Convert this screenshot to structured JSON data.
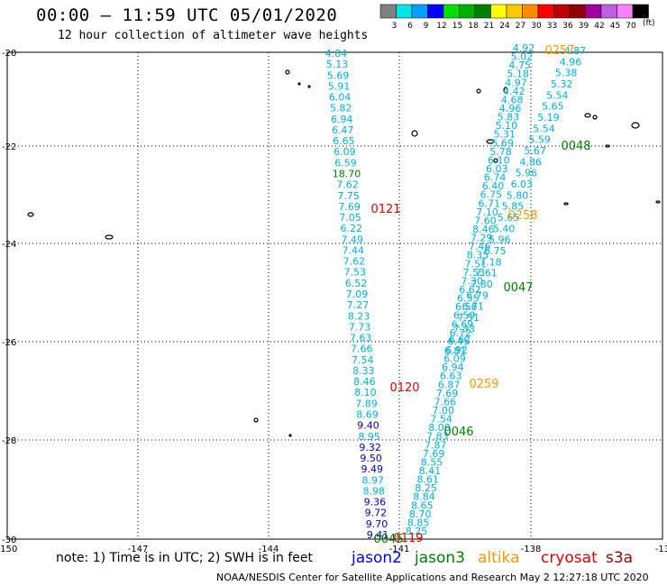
{
  "header": {
    "title": "00:00 – 11:59 UTC 05/01/2020",
    "subtitle": "12 hour collection of altimeter wave heights"
  },
  "colorbar": {
    "unit": "(ft)",
    "bins": [
      {
        "label": "3",
        "color": "#808080"
      },
      {
        "label": "6",
        "color": "#00e5e5"
      },
      {
        "label": "9",
        "color": "#00a0ff"
      },
      {
        "label": "12",
        "color": "#0000ff"
      },
      {
        "label": "15",
        "color": "#00e000"
      },
      {
        "label": "18",
        "color": "#00b000"
      },
      {
        "label": "21",
        "color": "#008000"
      },
      {
        "label": "24",
        "color": "#ffff00"
      },
      {
        "label": "27",
        "color": "#ffc800"
      },
      {
        "label": "30",
        "color": "#ff8c00"
      },
      {
        "label": "33",
        "color": "#ff0000"
      },
      {
        "label": "36",
        "color": "#c00000"
      },
      {
        "label": "39",
        "color": "#900000"
      },
      {
        "label": "42",
        "color": "#a000a0"
      },
      {
        "label": "45",
        "color": "#c060e0"
      },
      {
        "label": "70",
        "color": "#ff80ff"
      },
      {
        "label": "",
        "color": "#000000"
      }
    ]
  },
  "map": {
    "lon_ticks": [
      "-150",
      "-147",
      "-144",
      "-141",
      "-138",
      "-13"
    ],
    "lat_ticks": [
      "-20",
      "-22",
      "-24",
      "-26",
      "-28",
      "-30"
    ]
  },
  "track_colors": {
    "light": "#00b0e0",
    "green": "#008000",
    "blue": "#0000cc",
    "orange": "#ff9900",
    "red": "#dd0000"
  },
  "tracks": [
    {
      "name": "track-a",
      "values": [
        [
          "4.84",
          "light"
        ],
        [
          "5.13",
          "light"
        ],
        [
          "5.69",
          "light"
        ],
        [
          "5.91",
          "light"
        ],
        [
          "6.04",
          "light"
        ],
        [
          "5.82",
          "light"
        ],
        [
          "6.94",
          "light"
        ],
        [
          "6.47",
          "light"
        ],
        [
          "6.65",
          "light"
        ],
        [
          "6.09",
          "light"
        ],
        [
          "6.59",
          "light"
        ],
        [
          "18.70",
          "green"
        ],
        [
          "7.62",
          "light"
        ],
        [
          "7.75",
          "light"
        ],
        [
          "7.69",
          "light"
        ],
        [
          "7.05",
          "light"
        ],
        [
          "6.22",
          "light"
        ],
        [
          "7.49",
          "light"
        ],
        [
          "7.44",
          "light"
        ],
        [
          "7.62",
          "light"
        ],
        [
          "7.53",
          "light"
        ],
        [
          "6.52",
          "light"
        ],
        [
          "7.09",
          "light"
        ],
        [
          "7.27",
          "light"
        ],
        [
          "8.23",
          "light"
        ],
        [
          "7.73",
          "light"
        ],
        [
          "7.63",
          "light"
        ],
        [
          "7.66",
          "light"
        ],
        [
          "7.54",
          "light"
        ],
        [
          "8.33",
          "light"
        ],
        [
          "8.46",
          "light"
        ],
        [
          "8.10",
          "light"
        ],
        [
          "7.89",
          "light"
        ],
        [
          "8.69",
          "light"
        ],
        [
          "9.40",
          "blue"
        ],
        [
          "8.95",
          "light"
        ],
        [
          "9.32",
          "blue"
        ],
        [
          "9.50",
          "blue"
        ],
        [
          "9.49",
          "blue"
        ],
        [
          "8.97",
          "light"
        ],
        [
          "8.98",
          "light"
        ],
        [
          "9.36",
          "blue"
        ],
        [
          "9.72",
          "blue"
        ],
        [
          "9.70",
          "blue"
        ],
        [
          "9.41",
          "blue"
        ]
      ]
    },
    {
      "name": "track-b",
      "values": [
        [
          "4.92",
          "light"
        ],
        [
          "5.02",
          "light"
        ],
        [
          "4.75",
          "light"
        ],
        [
          "5.18",
          "light"
        ],
        [
          "4.97",
          "light"
        ],
        [
          "4.42",
          "light"
        ],
        [
          "4.68",
          "light"
        ],
        [
          "4.96",
          "light"
        ],
        [
          "5.83",
          "light"
        ],
        [
          "5.10",
          "light"
        ],
        [
          "5.31",
          "light"
        ],
        [
          "5.69",
          "light"
        ],
        [
          "5.78",
          "light"
        ],
        [
          "6.10",
          "light"
        ],
        [
          "6.03",
          "light"
        ],
        [
          "6.74",
          "light"
        ],
        [
          "6.40",
          "light"
        ],
        [
          "6.75",
          "light"
        ],
        [
          "6.71",
          "light"
        ],
        [
          "7.10",
          "light"
        ],
        [
          "7.60",
          "light"
        ],
        [
          "8.46",
          "light"
        ],
        [
          "7.29",
          "light"
        ],
        [
          "7.46",
          "light"
        ],
        [
          "8.35",
          "light"
        ],
        [
          "7.51",
          "light"
        ],
        [
          "7.53",
          "light"
        ],
        [
          "7.30",
          "light"
        ],
        [
          "6.62",
          "light"
        ],
        [
          "6.55",
          "light"
        ],
        [
          "6.56",
          "light"
        ],
        [
          "6.59",
          "light"
        ],
        [
          "6.69",
          "light"
        ],
        [
          "6.72",
          "light"
        ],
        [
          "6.45",
          "light"
        ],
        [
          "6.92",
          "light"
        ],
        [
          "6.09",
          "light"
        ],
        [
          "6.94",
          "light"
        ],
        [
          "6.63",
          "light"
        ],
        [
          "6.87",
          "light"
        ],
        [
          "7.69",
          "light"
        ],
        [
          "7.66",
          "light"
        ],
        [
          "7.00",
          "light"
        ],
        [
          "7.54",
          "light"
        ],
        [
          "8.00",
          "light"
        ],
        [
          "7.83",
          "light"
        ],
        [
          "7.87",
          "light"
        ],
        [
          "7.69",
          "light"
        ],
        [
          "8.55",
          "light"
        ],
        [
          "8.41",
          "light"
        ],
        [
          "8.61",
          "light"
        ],
        [
          "8.25",
          "light"
        ],
        [
          "8.84",
          "light"
        ],
        [
          "8.65",
          "light"
        ],
        [
          "8.70",
          "light"
        ],
        [
          "8.85",
          "light"
        ],
        [
          "8.25",
          "light"
        ]
      ]
    },
    {
      "name": "track-c",
      "values": [
        [
          "4.87",
          "light"
        ],
        [
          "4.96",
          "light"
        ],
        [
          "5.38",
          "light"
        ],
        [
          "5.32",
          "light"
        ],
        [
          "5.54",
          "light"
        ],
        [
          "5.65",
          "light"
        ],
        [
          "5.19",
          "light"
        ],
        [
          "5.54",
          "light"
        ],
        [
          "5.59",
          "light"
        ],
        [
          "5.67",
          "light"
        ],
        [
          "4.86",
          "light"
        ],
        [
          "5.96",
          "light"
        ],
        [
          "6.03",
          "light"
        ],
        [
          "5.80",
          "light"
        ],
        [
          "5.85",
          "light"
        ],
        [
          "5.65",
          "light"
        ],
        [
          "5.40",
          "light"
        ],
        [
          "5.96",
          "light"
        ],
        [
          "6.75",
          "light"
        ],
        [
          "7.18",
          "light"
        ],
        [
          "7.61",
          "light"
        ],
        [
          "7.80",
          "light"
        ],
        [
          "6.79",
          "light"
        ],
        [
          "6.71",
          "light"
        ],
        [
          "7.51",
          "light"
        ],
        [
          "7.33",
          "light"
        ],
        [
          "6.62",
          "light"
        ],
        [
          "6.81",
          "light"
        ]
      ]
    }
  ],
  "time_labels": [
    {
      "text": "0257",
      "color": "orange"
    },
    {
      "text": "0048",
      "color": "green"
    },
    {
      "text": "0258",
      "color": "orange"
    },
    {
      "text": "0047",
      "color": "green"
    },
    {
      "text": "0259",
      "color": "orange"
    },
    {
      "text": "0046",
      "color": "green"
    },
    {
      "text": "0121",
      "color": "red"
    },
    {
      "text": "0120",
      "color": "red"
    },
    {
      "text": "0119",
      "color": "red"
    },
    {
      "text": "0045",
      "color": "green"
    }
  ],
  "note": "note:  1) Time is in UTC;  2) SWH is in feet",
  "legend": [
    {
      "label": "jason2",
      "color": "#0000ff"
    },
    {
      "label": "jason3",
      "color": "#008000"
    },
    {
      "label": "altika",
      "color": "#ff9900"
    },
    {
      "label": "cryosat",
      "color": "#dd0000"
    },
    {
      "label": "s3a",
      "color": "#990000"
    }
  ],
  "footer": "NOAA/NESDIS Center for Satellite Applications and Research    May  2 12:27:18 UTC 2020"
}
